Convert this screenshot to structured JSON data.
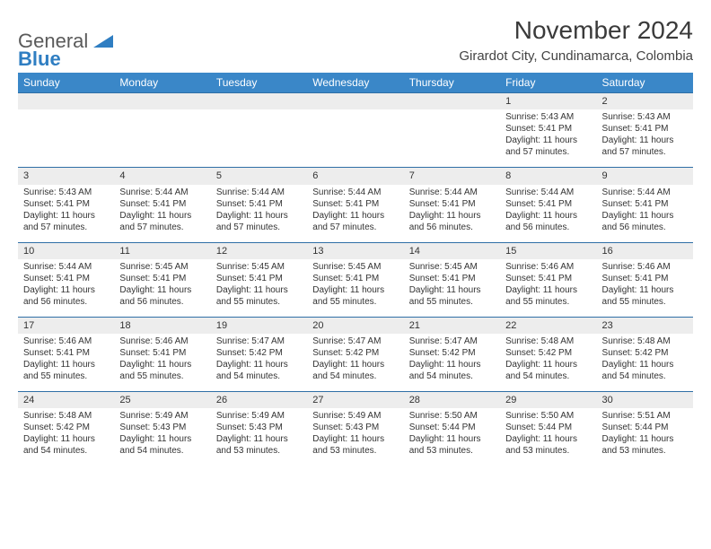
{
  "brand": {
    "line1": "General",
    "line2": "Blue"
  },
  "title": "November 2024",
  "location": "Girardot City, Cundinamarca, Colombia",
  "colors": {
    "header_bg": "#3a87c8",
    "header_text": "#ffffff",
    "band_bg": "#ededed",
    "rule": "#2f6fa6",
    "text": "#333333",
    "brand_blue": "#2f7ec2",
    "brand_gray": "#5a5a5a"
  },
  "day_headers": [
    "Sunday",
    "Monday",
    "Tuesday",
    "Wednesday",
    "Thursday",
    "Friday",
    "Saturday"
  ],
  "weeks": [
    [
      {
        "n": "",
        "lines": []
      },
      {
        "n": "",
        "lines": []
      },
      {
        "n": "",
        "lines": []
      },
      {
        "n": "",
        "lines": []
      },
      {
        "n": "",
        "lines": []
      },
      {
        "n": "1",
        "lines": [
          "Sunrise: 5:43 AM",
          "Sunset: 5:41 PM",
          "Daylight: 11 hours and 57 minutes."
        ]
      },
      {
        "n": "2",
        "lines": [
          "Sunrise: 5:43 AM",
          "Sunset: 5:41 PM",
          "Daylight: 11 hours and 57 minutes."
        ]
      }
    ],
    [
      {
        "n": "3",
        "lines": [
          "Sunrise: 5:43 AM",
          "Sunset: 5:41 PM",
          "Daylight: 11 hours and 57 minutes."
        ]
      },
      {
        "n": "4",
        "lines": [
          "Sunrise: 5:44 AM",
          "Sunset: 5:41 PM",
          "Daylight: 11 hours and 57 minutes."
        ]
      },
      {
        "n": "5",
        "lines": [
          "Sunrise: 5:44 AM",
          "Sunset: 5:41 PM",
          "Daylight: 11 hours and 57 minutes."
        ]
      },
      {
        "n": "6",
        "lines": [
          "Sunrise: 5:44 AM",
          "Sunset: 5:41 PM",
          "Daylight: 11 hours and 57 minutes."
        ]
      },
      {
        "n": "7",
        "lines": [
          "Sunrise: 5:44 AM",
          "Sunset: 5:41 PM",
          "Daylight: 11 hours and 56 minutes."
        ]
      },
      {
        "n": "8",
        "lines": [
          "Sunrise: 5:44 AM",
          "Sunset: 5:41 PM",
          "Daylight: 11 hours and 56 minutes."
        ]
      },
      {
        "n": "9",
        "lines": [
          "Sunrise: 5:44 AM",
          "Sunset: 5:41 PM",
          "Daylight: 11 hours and 56 minutes."
        ]
      }
    ],
    [
      {
        "n": "10",
        "lines": [
          "Sunrise: 5:44 AM",
          "Sunset: 5:41 PM",
          "Daylight: 11 hours and 56 minutes."
        ]
      },
      {
        "n": "11",
        "lines": [
          "Sunrise: 5:45 AM",
          "Sunset: 5:41 PM",
          "Daylight: 11 hours and 56 minutes."
        ]
      },
      {
        "n": "12",
        "lines": [
          "Sunrise: 5:45 AM",
          "Sunset: 5:41 PM",
          "Daylight: 11 hours and 55 minutes."
        ]
      },
      {
        "n": "13",
        "lines": [
          "Sunrise: 5:45 AM",
          "Sunset: 5:41 PM",
          "Daylight: 11 hours and 55 minutes."
        ]
      },
      {
        "n": "14",
        "lines": [
          "Sunrise: 5:45 AM",
          "Sunset: 5:41 PM",
          "Daylight: 11 hours and 55 minutes."
        ]
      },
      {
        "n": "15",
        "lines": [
          "Sunrise: 5:46 AM",
          "Sunset: 5:41 PM",
          "Daylight: 11 hours and 55 minutes."
        ]
      },
      {
        "n": "16",
        "lines": [
          "Sunrise: 5:46 AM",
          "Sunset: 5:41 PM",
          "Daylight: 11 hours and 55 minutes."
        ]
      }
    ],
    [
      {
        "n": "17",
        "lines": [
          "Sunrise: 5:46 AM",
          "Sunset: 5:41 PM",
          "Daylight: 11 hours and 55 minutes."
        ]
      },
      {
        "n": "18",
        "lines": [
          "Sunrise: 5:46 AM",
          "Sunset: 5:41 PM",
          "Daylight: 11 hours and 55 minutes."
        ]
      },
      {
        "n": "19",
        "lines": [
          "Sunrise: 5:47 AM",
          "Sunset: 5:42 PM",
          "Daylight: 11 hours and 54 minutes."
        ]
      },
      {
        "n": "20",
        "lines": [
          "Sunrise: 5:47 AM",
          "Sunset: 5:42 PM",
          "Daylight: 11 hours and 54 minutes."
        ]
      },
      {
        "n": "21",
        "lines": [
          "Sunrise: 5:47 AM",
          "Sunset: 5:42 PM",
          "Daylight: 11 hours and 54 minutes."
        ]
      },
      {
        "n": "22",
        "lines": [
          "Sunrise: 5:48 AM",
          "Sunset: 5:42 PM",
          "Daylight: 11 hours and 54 minutes."
        ]
      },
      {
        "n": "23",
        "lines": [
          "Sunrise: 5:48 AM",
          "Sunset: 5:42 PM",
          "Daylight: 11 hours and 54 minutes."
        ]
      }
    ],
    [
      {
        "n": "24",
        "lines": [
          "Sunrise: 5:48 AM",
          "Sunset: 5:42 PM",
          "Daylight: 11 hours and 54 minutes."
        ]
      },
      {
        "n": "25",
        "lines": [
          "Sunrise: 5:49 AM",
          "Sunset: 5:43 PM",
          "Daylight: 11 hours and 54 minutes."
        ]
      },
      {
        "n": "26",
        "lines": [
          "Sunrise: 5:49 AM",
          "Sunset: 5:43 PM",
          "Daylight: 11 hours and 53 minutes."
        ]
      },
      {
        "n": "27",
        "lines": [
          "Sunrise: 5:49 AM",
          "Sunset: 5:43 PM",
          "Daylight: 11 hours and 53 minutes."
        ]
      },
      {
        "n": "28",
        "lines": [
          "Sunrise: 5:50 AM",
          "Sunset: 5:44 PM",
          "Daylight: 11 hours and 53 minutes."
        ]
      },
      {
        "n": "29",
        "lines": [
          "Sunrise: 5:50 AM",
          "Sunset: 5:44 PM",
          "Daylight: 11 hours and 53 minutes."
        ]
      },
      {
        "n": "30",
        "lines": [
          "Sunrise: 5:51 AM",
          "Sunset: 5:44 PM",
          "Daylight: 11 hours and 53 minutes."
        ]
      }
    ]
  ]
}
